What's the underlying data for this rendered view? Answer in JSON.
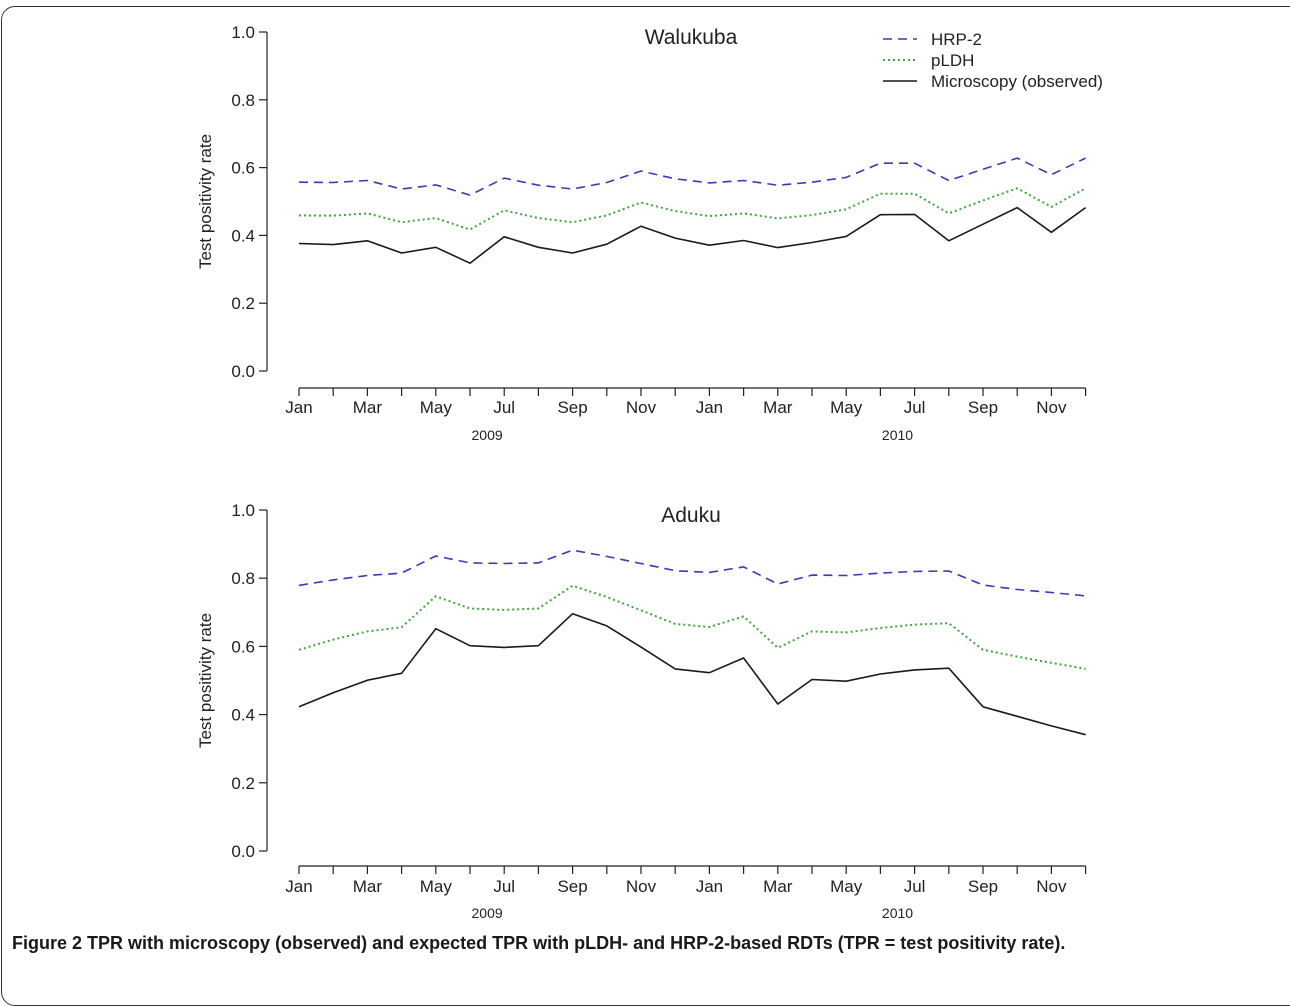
{
  "caption": {
    "label": "Figure 2",
    "text": "TPR with microscopy (observed) and expected TPR with pLDH- and HRP-2-based RDTs (TPR = test positivity rate)."
  },
  "colors": {
    "hrp2": "#3a3ab8",
    "pldh": "#3aa83a",
    "microscopy": "#1a1a1a",
    "axis": "#222222"
  },
  "chart_data": [
    {
      "type": "line",
      "title": "Walukuba",
      "ylabel": "Test positivity rate",
      "xlabel": "",
      "ylim": [
        0,
        1
      ],
      "yticks": [
        "0.0",
        "0.2",
        "0.4",
        "0.6",
        "0.8",
        "1.0"
      ],
      "x_tick_labels": [
        "Jan",
        "Mar",
        "May",
        "Jul",
        "Sep",
        "Nov",
        "Jan",
        "Mar",
        "May",
        "Jul",
        "Sep",
        "Nov"
      ],
      "years": [
        "2009",
        "2010"
      ],
      "legend": [
        "HRP-2",
        "pLDH",
        "Microscopy (observed)"
      ],
      "legend_position": "top-right",
      "grid": false,
      "series": [
        {
          "name": "HRP-2",
          "style": "dashed",
          "values": [
            0.557,
            0.556,
            0.562,
            0.537,
            0.549,
            0.519,
            0.569,
            0.548,
            0.537,
            0.556,
            0.59,
            0.567,
            0.555,
            0.562,
            0.548,
            0.557,
            0.571,
            0.613,
            0.613,
            0.562,
            0.595,
            0.628,
            0.579,
            0.628
          ]
        },
        {
          "name": "pLDH",
          "style": "dotted",
          "values": [
            0.459,
            0.458,
            0.465,
            0.439,
            0.451,
            0.417,
            0.474,
            0.451,
            0.439,
            0.459,
            0.497,
            0.472,
            0.457,
            0.465,
            0.45,
            0.46,
            0.477,
            0.523,
            0.523,
            0.465,
            0.503,
            0.539,
            0.484,
            0.539
          ]
        },
        {
          "name": "Microscopy (observed)",
          "style": "solid",
          "values": [
            0.376,
            0.373,
            0.384,
            0.348,
            0.365,
            0.318,
            0.396,
            0.365,
            0.348,
            0.374,
            0.427,
            0.392,
            0.371,
            0.385,
            0.364,
            0.379,
            0.397,
            0.461,
            0.462,
            0.384,
            0.433,
            0.482,
            0.409,
            0.482
          ]
        }
      ]
    },
    {
      "type": "line",
      "title": "Aduku",
      "ylabel": "Test positivity rate",
      "xlabel": "",
      "ylim": [
        0,
        1
      ],
      "yticks": [
        "0.0",
        "0.2",
        "0.4",
        "0.6",
        "0.8",
        "1.0"
      ],
      "x_tick_labels": [
        "Jan",
        "Mar",
        "May",
        "Jul",
        "Sep",
        "Nov",
        "Jan",
        "Mar",
        "May",
        "Jul",
        "Sep",
        "Nov"
      ],
      "years": [
        "2009",
        "2010"
      ],
      "legend": [],
      "grid": false,
      "series": [
        {
          "name": "HRP-2",
          "style": "dashed",
          "values": [
            0.779,
            0.795,
            0.808,
            0.815,
            0.865,
            0.845,
            0.843,
            0.845,
            0.882,
            0.864,
            0.843,
            0.822,
            0.817,
            0.833,
            0.783,
            0.809,
            0.808,
            0.815,
            0.82,
            0.821,
            0.78,
            0.767,
            0.758,
            0.748
          ]
        },
        {
          "name": "pLDH",
          "style": "dotted",
          "values": [
            0.59,
            0.62,
            0.644,
            0.656,
            0.747,
            0.711,
            0.707,
            0.711,
            0.778,
            0.745,
            0.706,
            0.666,
            0.657,
            0.688,
            0.596,
            0.644,
            0.641,
            0.654,
            0.664,
            0.668,
            0.59,
            0.57,
            0.552,
            0.534
          ]
        },
        {
          "name": "Microscopy (observed)",
          "style": "solid",
          "values": [
            0.423,
            0.464,
            0.501,
            0.521,
            0.652,
            0.602,
            0.597,
            0.602,
            0.696,
            0.66,
            0.598,
            0.534,
            0.523,
            0.566,
            0.431,
            0.503,
            0.498,
            0.519,
            0.531,
            0.536,
            0.423,
            0.395,
            0.367,
            0.341
          ]
        }
      ]
    }
  ]
}
